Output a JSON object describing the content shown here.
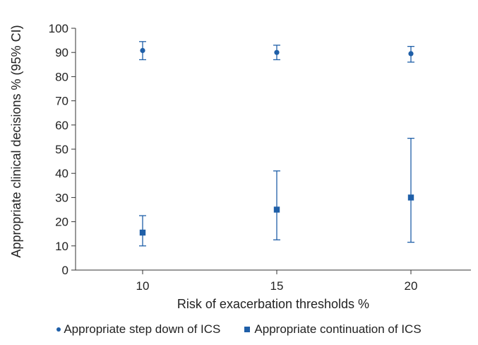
{
  "chart_data": {
    "type": "scatter",
    "xlabel": "Risk of exacerbation thresholds %",
    "ylabel": "Appropriate clinical decisions % (95% CI)",
    "x": [
      10,
      15,
      20
    ],
    "x_ticks": [
      "10",
      "15",
      "20"
    ],
    "y_ticks": [
      "0",
      "10",
      "20",
      "30",
      "40",
      "50",
      "60",
      "70",
      "80",
      "90",
      "100"
    ],
    "ylim": [
      0,
      100
    ],
    "grid": false,
    "legend_position": "bottom",
    "color": "#1f5fa8",
    "series": [
      {
        "name": "Appropriate step down of ICS",
        "marker": "circle",
        "values": [
          90.8,
          90.0,
          89.5
        ],
        "ci_lower": [
          87.0,
          87.0,
          86.0
        ],
        "ci_upper": [
          94.5,
          93.0,
          92.5
        ]
      },
      {
        "name": "Appropriate continuation of ICS",
        "marker": "square",
        "values": [
          15.5,
          25.0,
          30.0
        ],
        "ci_lower": [
          10.0,
          12.5,
          11.5
        ],
        "ci_upper": [
          22.5,
          41.0,
          54.5
        ]
      }
    ]
  }
}
